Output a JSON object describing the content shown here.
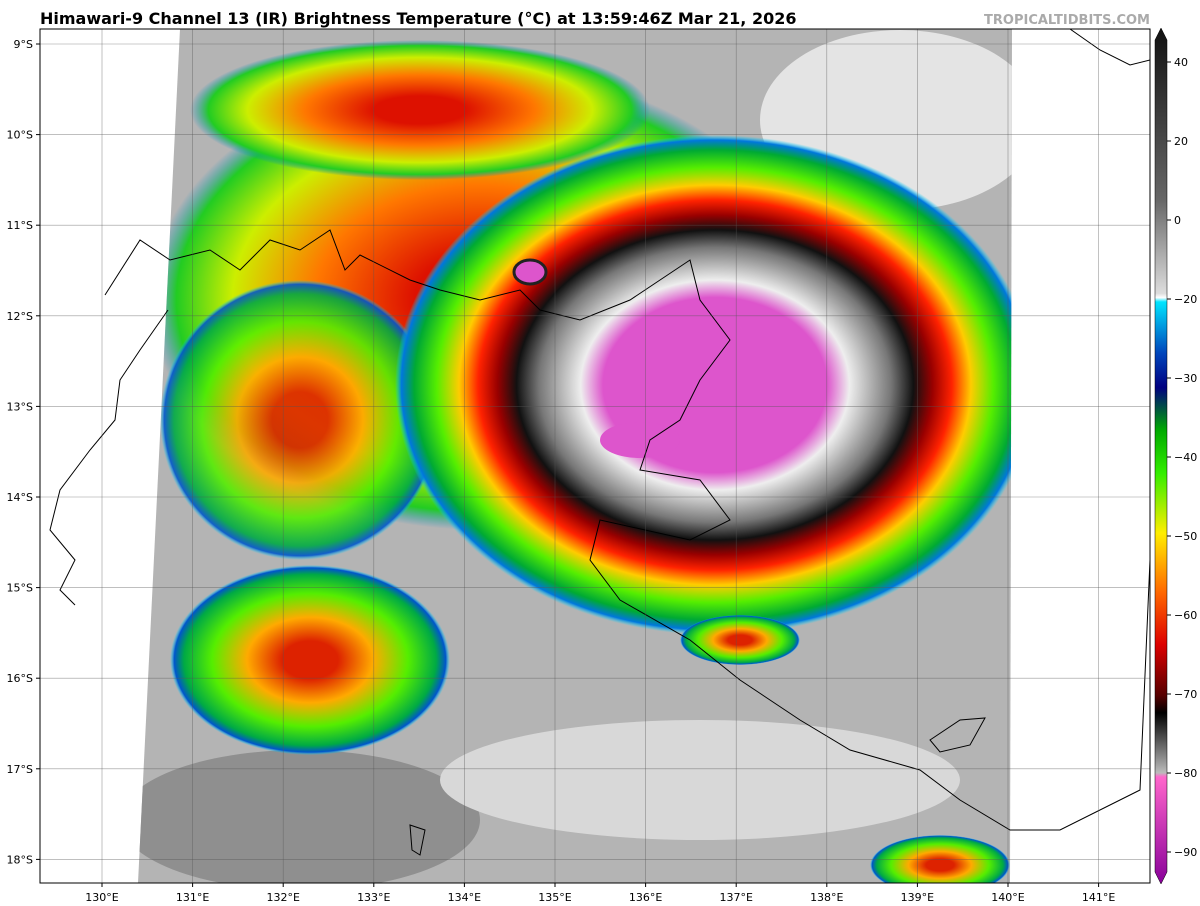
{
  "header": {
    "title": "Himawari-9 Channel 13 (IR) Brightness Temperature (°C) at 13:59:46Z Mar 21, 2026",
    "credit": "TROPICALTIDBITS.COM"
  },
  "map": {
    "lat_labels": [
      "9°S",
      "10°S",
      "11°S",
      "12°S",
      "13°S",
      "14°S",
      "15°S",
      "16°S",
      "17°S",
      "18°S"
    ],
    "lon_labels": [
      "130°E",
      "131°E",
      "132°E",
      "133°E",
      "134°E",
      "135°E",
      "136°E",
      "137°E",
      "138°E",
      "139°E",
      "140°E",
      "141°E"
    ]
  },
  "colorbar": {
    "ticks": [
      "40",
      "20",
      "0",
      "−20",
      "−30",
      "−40",
      "−50",
      "−60",
      "−70",
      "−80",
      "−90"
    ]
  }
}
